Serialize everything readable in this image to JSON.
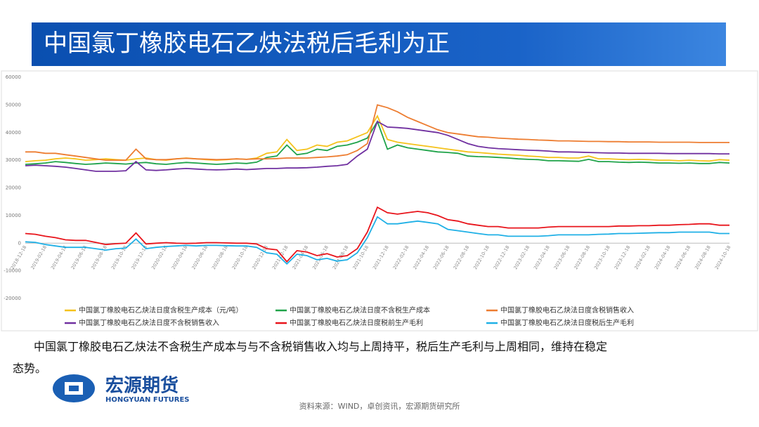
{
  "header": {
    "title": "中国氯丁橡胶电石乙炔法税后毛利为正"
  },
  "chart_data": {
    "type": "line",
    "categories": [
      "2018-12-18",
      null,
      "2019-02-18",
      null,
      "2019-04-18",
      null,
      "2019-06-18",
      null,
      "2019-08-18",
      null,
      "2019-10-18",
      null,
      "2019-12-18",
      null,
      "2020-02-18",
      null,
      "2020-04-18",
      null,
      "2020-06-18",
      null,
      "2020-08-18",
      null,
      "2020-10-18",
      null,
      "2020-12-18",
      null,
      "2021-02-18",
      null,
      "2021-04-18",
      null,
      "2021-06-18",
      null,
      "2021-08-18",
      null,
      "2021-10-18",
      null,
      "2021-12-18",
      null,
      "2022-02-18",
      null,
      "2022-04-18",
      null,
      "2022-06-18",
      null,
      "2022-08-18",
      null,
      "2022-10-18",
      null,
      "2022-12-18",
      null,
      "2023-02-18",
      null,
      "2023-04-18",
      null,
      "2023-06-18",
      null,
      "2023-08-18",
      null,
      "2023-10-18",
      null,
      "2023-12-18",
      null,
      "2024-02-18",
      null,
      "2024-04-18",
      null,
      "2024-06-18",
      null,
      "2024-08-18",
      null,
      "2024-10-18"
    ],
    "series": [
      {
        "name": "中国氯丁橡胶电石乙炔法日度含税生产成本（元/吨）",
        "color": "#f5c21b",
        "values": [
          29500,
          29800,
          30000,
          30500,
          30800,
          30500,
          30000,
          30200,
          30500,
          30200,
          30000,
          30500,
          30800,
          30200,
          30000,
          30500,
          30800,
          30500,
          30200,
          30000,
          30200,
          30500,
          30300,
          30800,
          32500,
          33000,
          37500,
          33500,
          34000,
          35500,
          35000,
          36500,
          37000,
          38500,
          40000,
          46000,
          37500,
          36500,
          36000,
          35500,
          35000,
          34500,
          34000,
          33500,
          33000,
          32800,
          32500,
          32200,
          32000,
          31800,
          31500,
          31300,
          31000,
          31000,
          30800,
          30800,
          31500,
          30500,
          30500,
          30300,
          30200,
          30300,
          30200,
          30000,
          30000,
          29800,
          30000,
          29800,
          29700,
          30200,
          30000
        ]
      },
      {
        "name": "中国氯丁橡胶电石乙炔法日度不含税生产成本",
        "color": "#1fa34a",
        "values": [
          28500,
          28700,
          29000,
          29500,
          29200,
          28800,
          28500,
          28700,
          29000,
          28800,
          28600,
          29000,
          29200,
          28700,
          28500,
          28900,
          29200,
          29000,
          28700,
          28500,
          28700,
          29000,
          28800,
          29300,
          31000,
          31500,
          35500,
          32000,
          32500,
          34000,
          33500,
          35000,
          35500,
          36500,
          38000,
          44000,
          34000,
          35500,
          34500,
          34000,
          33500,
          33000,
          32800,
          32500,
          31500,
          31300,
          31200,
          31000,
          30800,
          30500,
          30300,
          30200,
          29800,
          29800,
          29700,
          29600,
          30300,
          29500,
          29500,
          29300,
          29200,
          29300,
          29200,
          29000,
          29000,
          28900,
          29000,
          28800,
          28800,
          29200,
          29000
        ]
      },
      {
        "name": "中国氯丁橡胶电石乙炔法日度含税销售收入",
        "color": "#ed7d31",
        "values": [
          33000,
          33000,
          32500,
          32500,
          32000,
          31500,
          31000,
          30500,
          30000,
          30000,
          30000,
          34000,
          30500,
          30200,
          30200,
          30500,
          30700,
          30500,
          30400,
          30200,
          30300,
          30500,
          30300,
          30500,
          30500,
          30600,
          30800,
          30800,
          30800,
          31000,
          31200,
          31500,
          32000,
          33500,
          36000,
          50000,
          49000,
          47500,
          45500,
          44000,
          42500,
          41000,
          40000,
          39500,
          39000,
          38500,
          38300,
          38000,
          37800,
          37600,
          37500,
          37300,
          37200,
          37000,
          37000,
          36900,
          36800,
          36800,
          36700,
          36700,
          36600,
          36600,
          36600,
          36500,
          36500,
          36500,
          36500,
          36400,
          36400,
          36400,
          36400
        ]
      },
      {
        "name": "中国氯丁橡胶电石乙炔法日度不含税销售收入",
        "color": "#7030a0",
        "values": [
          28000,
          28200,
          28000,
          27800,
          27500,
          27000,
          26500,
          26000,
          26000,
          26000,
          26200,
          29500,
          26500,
          26300,
          26500,
          26800,
          27000,
          26800,
          26600,
          26500,
          26600,
          26800,
          26600,
          26800,
          27000,
          27000,
          27200,
          27200,
          27300,
          27500,
          27800,
          28000,
          28500,
          31500,
          34000,
          44000,
          42000,
          41800,
          41500,
          41000,
          40500,
          40000,
          39000,
          37500,
          36000,
          35000,
          34500,
          34200,
          34000,
          33800,
          33600,
          33500,
          33300,
          33000,
          33000,
          32900,
          32800,
          32700,
          32600,
          32600,
          32500,
          32500,
          32500,
          32500,
          32400,
          32400,
          32400,
          32400,
          32400,
          32300,
          32300
        ]
      },
      {
        "name": "中国氯丁橡胶电石乙炔法日度税前生产毛利",
        "color": "#e8141b",
        "values": [
          3500,
          3200,
          2500,
          2000,
          1200,
          1000,
          1000,
          300,
          -500,
          -200,
          0,
          3700,
          -300,
          0,
          200,
          0,
          -100,
          0,
          200,
          200,
          100,
          0,
          0,
          -300,
          -2000,
          -2400,
          -6700,
          -2700,
          -3200,
          -4500,
          -3800,
          -5000,
          -4500,
          -2000,
          4000,
          13000,
          11000,
          10500,
          11000,
          11500,
          11000,
          10000,
          8500,
          8000,
          7000,
          6500,
          6000,
          6000,
          5500,
          5500,
          5500,
          5500,
          5800,
          6000,
          6000,
          6000,
          6000,
          6000,
          6000,
          6200,
          6200,
          6300,
          6300,
          6500,
          6500,
          6700,
          6800,
          7000,
          7000,
          6500,
          6500
        ]
      },
      {
        "name": "中国氯丁橡胶电石乙炔法日度税后生产毛利",
        "color": "#1fb0e6",
        "values": [
          500,
          300,
          -500,
          -1000,
          -1500,
          -1500,
          -1500,
          -2000,
          -2500,
          -2000,
          -1800,
          1500,
          -2000,
          -1500,
          -1200,
          -1000,
          -800,
          -1000,
          -800,
          -800,
          -900,
          -1000,
          -1000,
          -1500,
          -3500,
          -4000,
          -7500,
          -4000,
          -4500,
          -6000,
          -5500,
          -6500,
          -6000,
          -3500,
          2000,
          9500,
          7000,
          7000,
          7500,
          8000,
          7500,
          7000,
          5000,
          4500,
          4000,
          3500,
          3000,
          3000,
          2500,
          2500,
          2500,
          2500,
          2700,
          3000,
          3000,
          3000,
          3000,
          3200,
          3300,
          3500,
          3500,
          3600,
          3700,
          3800,
          3800,
          4000,
          4000,
          4000,
          4000,
          3500,
          3500
        ]
      }
    ],
    "ylim": [
      -20000,
      60000
    ],
    "yticks": [
      60000,
      50000,
      40000,
      30000,
      20000,
      10000,
      0,
      -10000,
      -20000
    ],
    "grid": false
  },
  "text": {
    "paragraph": "中国氯丁橡胶电石乙炔法不含税生产成本与与不含税销售收入均与上周持平，税后生产毛利与上周相同，维持在稳定态势。",
    "source": "资料来源：WIND，卓创资讯，宏源期货研究所"
  },
  "logo": {
    "name": "宏源期货",
    "english": "HONGYUAN FUTURES"
  }
}
